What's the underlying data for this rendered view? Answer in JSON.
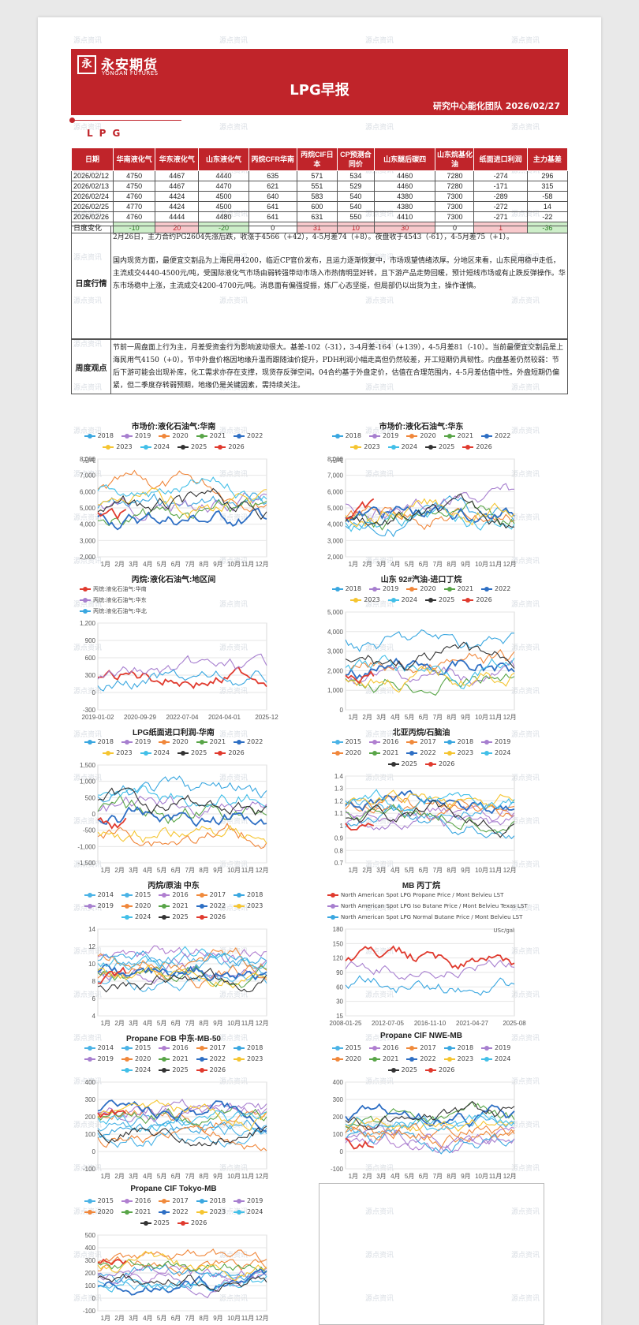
{
  "watermark_text": "源点资讯",
  "logo": {
    "cn": "永安期货",
    "en": "YONGAN FUTURES",
    "mark": "永"
  },
  "report": {
    "title": "LPG早报",
    "team_date": "研究中心能化团队  2026/02/27"
  },
  "section": {
    "label": "LPG"
  },
  "table": {
    "headers": [
      "日期",
      "华南液化气",
      "华东液化气",
      "山东液化气",
      "丙烷CFR华南",
      "丙烷CIF日本",
      "CP预测合同价",
      "山东醚后碳四",
      "山东烷基化油",
      "纸面进口利润",
      "主力基差"
    ],
    "rows": [
      [
        "2026/02/12",
        "4750",
        "4467",
        "4440",
        "635",
        "571",
        "534",
        "4460",
        "7280",
        "-274",
        "296"
      ],
      [
        "2026/02/13",
        "4750",
        "4467",
        "4470",
        "621",
        "551",
        "529",
        "4460",
        "7280",
        "-171",
        "315"
      ],
      [
        "2026/02/24",
        "4760",
        "4424",
        "4500",
        "640",
        "583",
        "540",
        "4380",
        "7300",
        "-289",
        "-58"
      ],
      [
        "2026/02/25",
        "4770",
        "4424",
        "4500",
        "641",
        "600",
        "540",
        "4380",
        "7300",
        "-272",
        "14"
      ],
      [
        "2026/02/26",
        "4760",
        "4444",
        "4480",
        "641",
        "631",
        "550",
        "4410",
        "7300",
        "-271",
        "-22"
      ]
    ],
    "change_label": "日度变化",
    "change": [
      "-10",
      "20",
      "-20",
      "0",
      "31",
      "10",
      "30",
      "0",
      "1",
      "-36"
    ],
    "change_colors": [
      "down",
      "up",
      "down",
      "",
      "up",
      "up",
      "up",
      "",
      "up",
      "down"
    ]
  },
  "daily": {
    "label": "日度行情",
    "p1": "2月26日，主力合约PG2604先涨后跌，收涨于4566（+42），4-5月差74（+8）。夜盘收于4543（-61），4-5月差75（+1）。",
    "p2": "国内现货方面，最便宜交割品为上海民用4200，临近CP官价发布，且运力逐渐恢复中，市场观望情绪浓厚。分地区来看，山东民用稳中走低，主流成交4440-4500元/吨，受国际液化气市场由弱转强带动市场入市热情明显好转，且下游产品走势回暖，预计短线市场或有止跌反弹操作。华东市场稳中上涨，主流成交4200-4700元/吨。消息面有偏强提振，炼厂心态坚挺，但局部仍以出货为主，操作谨慎。"
  },
  "weekly": {
    "label": "周度观点",
    "text": "节前一周盘面上行为主，月差受资金行为影响波动很大。基差-102（-31），3-4月差-164（+139），4-5月差81（-10）。当前最便宜交割品是上海民用气4150（+0）。节中外盘价格因地缘升温而跟随油价提升，PDH利润小幅走高但仍然较差，开工短期仍具韧性。内盘基差仍然较弱：节后下游可能会出现补库，化工需求亦存在支撑，现货存反弹空间。04合约基于外盘定价，估值在合理范围内，4-5月差估值中性。外盘短期仍偏紧，但二季度存转弱预期，地缘仍是关键因素，需持续关注。"
  },
  "charts": [
    {
      "id": "c1",
      "title": "市场价:液化石油气:华南",
      "legend": [
        "2018",
        "2019",
        "2020",
        "2021",
        "2022",
        "2023",
        "2024",
        "2025",
        "2026"
      ],
      "unit": "元/吨",
      "yticks": [
        "8,000",
        "7,000",
        "6,000",
        "5,000",
        "4,000",
        "3,000",
        "2,000"
      ],
      "xticks": [
        "1月",
        "2月",
        "3月",
        "4月",
        "5月",
        "6月",
        "7月",
        "8月",
        "9月",
        "10月",
        "11月",
        "12月"
      ]
    },
    {
      "id": "c2",
      "title": "市场价:液化石油气:华东",
      "legend": [
        "2018",
        "2019",
        "2020",
        "2021",
        "2022",
        "2023",
        "2024",
        "2025",
        "2026"
      ],
      "unit": "元/吨",
      "yticks": [
        "8,000",
        "7,000",
        "6,000",
        "5,000",
        "4,000",
        "3,000",
        "2,000"
      ],
      "xticks": [
        "1月",
        "2月",
        "3月",
        "4月",
        "5月",
        "6月",
        "7月",
        "8月",
        "9月",
        "10月",
        "11月",
        "12月"
      ]
    },
    {
      "id": "c3",
      "title": "丙烷:液化石油气:地区间",
      "legend": [
        "丙烷:液化石油气:华南",
        "丙烷:液化石油气:华东",
        "丙烷:液化石油气:华北"
      ],
      "unit": "",
      "yticks": [
        "1,200",
        "900",
        "600",
        "300",
        "0",
        "-300"
      ],
      "xticks": [
        "2019-01-02",
        "2020-09-29",
        "2022-07-04",
        "2024-04-01",
        "2025-12"
      ]
    },
    {
      "id": "c4",
      "title": "山东 92#汽油-进口丁烷",
      "legend": [
        "2018",
        "2019",
        "2020",
        "2021",
        "2022",
        "2023",
        "2024",
        "2025",
        "2026"
      ],
      "unit": "",
      "yticks": [
        "5,000",
        "4,000",
        "3,000",
        "2,000",
        "1,000",
        "0"
      ],
      "xticks": [
        "1月",
        "2月",
        "3月",
        "4月",
        "5月",
        "6月",
        "7月",
        "8月",
        "9月",
        "10月",
        "11月",
        "12月"
      ]
    },
    {
      "id": "c5",
      "title": "LPG纸面进口利润-华南",
      "legend": [
        "2018",
        "2019",
        "2020",
        "2021",
        "2022",
        "2023",
        "2024",
        "2025",
        "2026"
      ],
      "unit": "",
      "yticks": [
        "1,500",
        "1,000",
        "500",
        "0",
        "-500",
        "-1,000",
        "-1,500"
      ],
      "xticks": [
        "1月",
        "2月",
        "3月",
        "4月",
        "5月",
        "6月",
        "7月",
        "8月",
        "9月",
        "10月",
        "11月",
        "12月"
      ]
    },
    {
      "id": "c6",
      "title": "北亚丙烷/石脑油",
      "legend": [
        "2015",
        "2016",
        "2017",
        "2018",
        "2019",
        "2020",
        "2021",
        "2022",
        "2023",
        "2024",
        "2025",
        "2026"
      ],
      "unit": "",
      "yticks": [
        "1.4",
        "1.3",
        "1.2",
        "1.1",
        "1",
        "0.9",
        "0.8",
        "0.7"
      ],
      "xticks": [
        "1月",
        "2月",
        "3月",
        "4月",
        "5月",
        "6月",
        "7月",
        "8月",
        "9月",
        "10月",
        "11月",
        "12月"
      ]
    },
    {
      "id": "c7",
      "title": "丙烷/原油 中东",
      "legend": [
        "2014",
        "2015",
        "2016",
        "2017",
        "2018",
        "2019",
        "2020",
        "2021",
        "2022",
        "2023",
        "2024",
        "2025",
        "2026"
      ],
      "unit": "",
      "yticks": [
        "14",
        "12",
        "10",
        "8",
        "6",
        "4"
      ],
      "xticks": [
        "1月",
        "2月",
        "3月",
        "4月",
        "5月",
        "6月",
        "7月",
        "8月",
        "9月",
        "10月",
        "11月",
        "12月"
      ]
    },
    {
      "id": "c8",
      "title": "MB 丙丁烷",
      "legend": [
        "North American Spot LPG Propane Price / Mont Belvieu LST",
        "North American Spot LPG Iso Butane Price / Mont Belvieu Texas LST",
        "North American Spot LPG Normal Butane Price / Mont Belvieu LST"
      ],
      "unit": "USc/gal",
      "yticks": [
        "180",
        "150",
        "120",
        "90",
        "60",
        "30",
        "15"
      ],
      "xticks": [
        "2008-01-25",
        "2012-07-05",
        "2016-11-10",
        "2021-04-27",
        "2025-08"
      ]
    },
    {
      "id": "c9",
      "title": "Propane FOB 中东-MB-50",
      "legend": [
        "2014",
        "2015",
        "2016",
        "2017",
        "2018",
        "2019",
        "2020",
        "2021",
        "2022",
        "2023",
        "2024",
        "2025",
        "2026"
      ],
      "unit": "",
      "yticks": [
        "400",
        "300",
        "200",
        "100",
        "0",
        "-100"
      ],
      "xticks": [
        "1月",
        "2月",
        "3月",
        "4月",
        "5月",
        "6月",
        "7月",
        "8月",
        "9月",
        "10月",
        "11月",
        "12月"
      ]
    },
    {
      "id": "c10",
      "title": "Propane CIF NWE-MB",
      "legend": [
        "2015",
        "2016",
        "2017",
        "2018",
        "2019",
        "2020",
        "2021",
        "2022",
        "2023",
        "2024",
        "2025",
        "2026"
      ],
      "unit": "",
      "yticks": [
        "400",
        "300",
        "200",
        "100",
        "0",
        "-100"
      ],
      "xticks": [
        "1月",
        "2月",
        "3月",
        "4月",
        "5月",
        "6月",
        "7月",
        "8月",
        "9月",
        "10月",
        "11月",
        "12月"
      ]
    },
    {
      "id": "c11",
      "title": "Propane CIF Tokyo-MB",
      "legend": [
        "2015",
        "2016",
        "2017",
        "2018",
        "2019",
        "2020",
        "2021",
        "2022",
        "2023",
        "2024",
        "2025",
        "2026"
      ],
      "unit": "",
      "yticks": [
        "500",
        "400",
        "300",
        "200",
        "100",
        "0",
        "-100"
      ],
      "xticks": [
        "1月",
        "2月",
        "3月",
        "4月",
        "5月",
        "6月",
        "7月",
        "8月",
        "9月",
        "10月",
        "11月",
        "12月"
      ]
    }
  ],
  "colors": {
    "brand": "#c0242a",
    "years": {
      "2014": "#4bb3e6",
      "2015": "#4bb3e6",
      "2016": "#b07fd0",
      "2017": "#f08a3c",
      "2018": "#3aa7e0",
      "2019": "#a77fcf",
      "2020": "#f0873b",
      "2021": "#59a548",
      "2022": "#2e6fc4",
      "2023": "#f5c531",
      "2024": "#42bfe8",
      "2025": "#333333",
      "2026": "#e03a2e"
    }
  }
}
